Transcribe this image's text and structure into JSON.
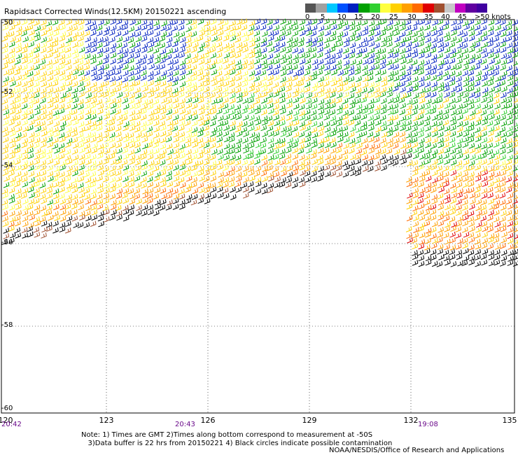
{
  "title": "Rapidsact Corrected Winds(12.5KM) 20150221 ascending",
  "legend": {
    "colors": [
      "#555555",
      "#a0a0a0",
      "#00c8ff",
      "#0050ff",
      "#0020c0",
      "#00a000",
      "#30d030",
      "#ffff40",
      "#ffd000",
      "#ffa000",
      "#ff6a00",
      "#e00000",
      "#a05030",
      "#c8c8c8",
      "#c000c0",
      "#6000a0",
      "#4000a0"
    ],
    "labels": [
      "0",
      "5",
      "10",
      "15",
      "20",
      "25",
      "30",
      "35",
      "40",
      "45",
      ">50 knots"
    ]
  },
  "y_axis": {
    "labels": [
      "-50",
      "-52",
      "-54",
      "-56",
      "-58",
      "-60"
    ]
  },
  "x_axis": {
    "labels": [
      "120",
      "123",
      "126",
      "129",
      "132",
      "135"
    ]
  },
  "times": [
    "20:42",
    "20:43",
    "19:08"
  ],
  "notes": {
    "line1": "Note: 1) Times are GMT 2)Times along bottom correspond to measurement at -50S",
    "line2": "3)Data buffer is 22 hrs from 20150221 4) Black circles indicate possible contamination"
  },
  "credit": "NOAA/NESDIS/Office of Research and Applications"
}
